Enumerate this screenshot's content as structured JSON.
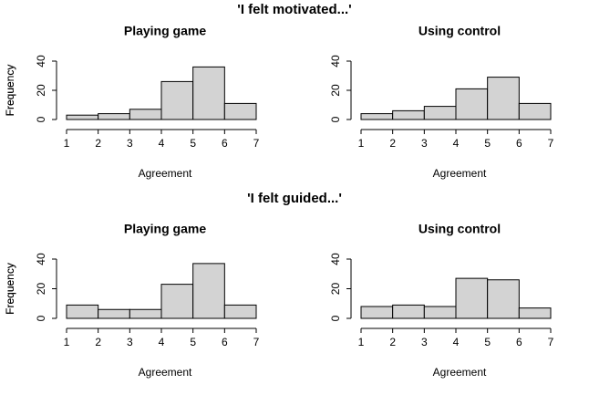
{
  "headings": [
    "'I felt motivated...'",
    "'I felt guided...'"
  ],
  "chart_data": [
    {
      "type": "histogram",
      "title": "Playing game",
      "xlabel": "Agreement",
      "ylabel": "Frequency",
      "bins": [
        1,
        2,
        3,
        4,
        5,
        6,
        7
      ],
      "values": [
        3,
        4,
        7,
        26,
        36,
        11
      ],
      "color": "#d3d3d3",
      "xlim": [
        1,
        7
      ],
      "xticks": [
        1,
        2,
        3,
        4,
        5,
        6,
        7
      ],
      "ylim": [
        0,
        40
      ],
      "yticks": [
        0,
        20,
        40
      ]
    },
    {
      "type": "histogram",
      "title": "Using control",
      "xlabel": "Agreement",
      "ylabel": "Frequency",
      "bins": [
        1,
        2,
        3,
        4,
        5,
        6,
        7
      ],
      "values": [
        4,
        6,
        9,
        21,
        29,
        11
      ],
      "color": "#d3d3d3",
      "xlim": [
        1,
        7
      ],
      "xticks": [
        1,
        2,
        3,
        4,
        5,
        6,
        7
      ],
      "ylim": [
        0,
        40
      ],
      "yticks": [
        0,
        20,
        40
      ]
    },
    {
      "type": "histogram",
      "title": "Playing game",
      "xlabel": "Agreement",
      "ylabel": "Frequency",
      "bins": [
        1,
        2,
        3,
        4,
        5,
        6,
        7
      ],
      "values": [
        9,
        6,
        6,
        23,
        37,
        9
      ],
      "color": "#d3d3d3",
      "xlim": [
        1,
        7
      ],
      "xticks": [
        1,
        2,
        3,
        4,
        5,
        6,
        7
      ],
      "ylim": [
        0,
        40
      ],
      "yticks": [
        0,
        20,
        40
      ]
    },
    {
      "type": "histogram",
      "title": "Using control",
      "xlabel": "Agreement",
      "ylabel": "Frequency",
      "bins": [
        1,
        2,
        3,
        4,
        5,
        6,
        7
      ],
      "values": [
        8,
        9,
        8,
        27,
        26,
        7
      ],
      "color": "#d3d3d3",
      "xlim": [
        1,
        7
      ],
      "xticks": [
        1,
        2,
        3,
        4,
        5,
        6,
        7
      ],
      "ylim": [
        0,
        40
      ],
      "yticks": [
        0,
        20,
        40
      ]
    }
  ]
}
